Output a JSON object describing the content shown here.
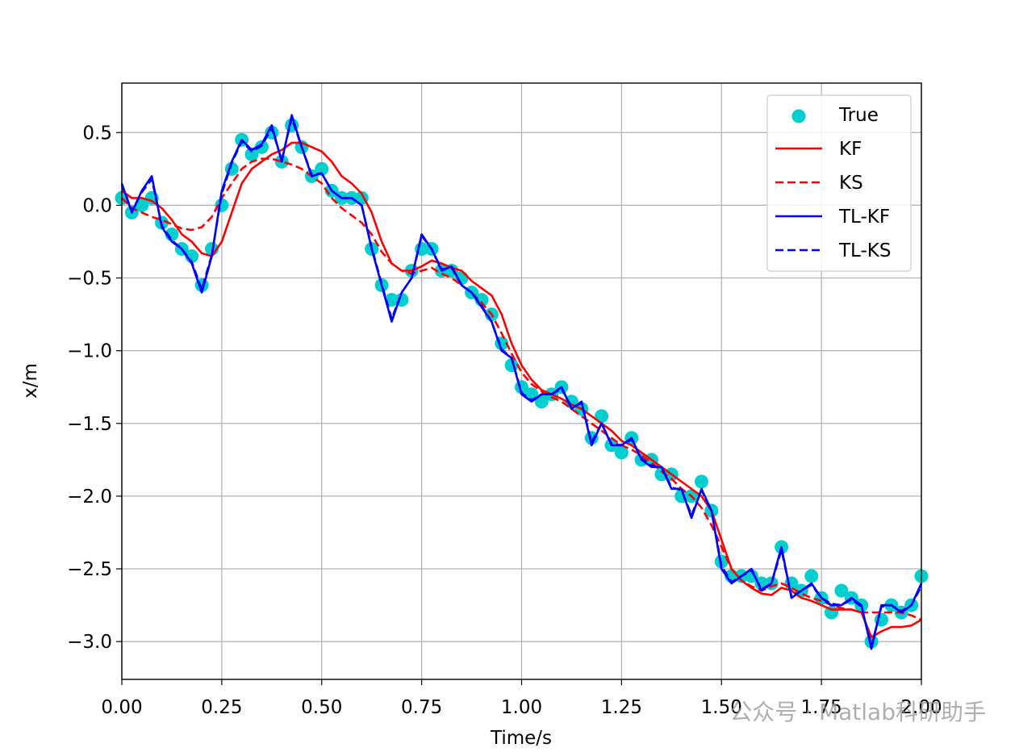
{
  "chart_data": {
    "type": "line",
    "xlabel": "Time/s",
    "ylabel": "x/m",
    "watermark": "公众号 · Matlab科研助手",
    "xlim": [
      0,
      2
    ],
    "ylim": [
      -3.26,
      0.84
    ],
    "grid": true,
    "legend": "upper right",
    "xticks": [
      {
        "value": 0,
        "label": "0.00"
      },
      {
        "value": 0.25,
        "label": "0.25"
      },
      {
        "value": 0.5,
        "label": "0.50"
      },
      {
        "value": 0.75,
        "label": "0.75"
      },
      {
        "value": 1,
        "label": "1.00"
      },
      {
        "value": 1.25,
        "label": "1.25"
      },
      {
        "value": 1.5,
        "label": "1.50"
      },
      {
        "value": 1.75,
        "label": "1.75"
      },
      {
        "value": 2,
        "label": "2.00"
      }
    ],
    "yticks": [
      {
        "value": -3,
        "label": "−3.0"
      },
      {
        "value": -2.5,
        "label": "−2.5"
      },
      {
        "value": -2,
        "label": "−2.0"
      },
      {
        "value": -1.5,
        "label": "−1.5"
      },
      {
        "value": -1,
        "label": "−1.0"
      },
      {
        "value": -0.5,
        "label": "−0.5"
      },
      {
        "value": 0,
        "label": "0.0"
      },
      {
        "value": 0.5,
        "label": "0.5"
      }
    ],
    "x": [
      0,
      0.025,
      0.05,
      0.075,
      0.1,
      0.125,
      0.15,
      0.175,
      0.2,
      0.225,
      0.25,
      0.275,
      0.3,
      0.325,
      0.35,
      0.375,
      0.4,
      0.425,
      0.45,
      0.475,
      0.5,
      0.525,
      0.55,
      0.575,
      0.6,
      0.625,
      0.65,
      0.675,
      0.7,
      0.725,
      0.75,
      0.775,
      0.8,
      0.825,
      0.85,
      0.875,
      0.9,
      0.925,
      0.95,
      0.975,
      1,
      1.025,
      1.05,
      1.075,
      1.1,
      1.125,
      1.15,
      1.175,
      1.2,
      1.225,
      1.25,
      1.275,
      1.3,
      1.325,
      1.35,
      1.375,
      1.4,
      1.425,
      1.45,
      1.475,
      1.5,
      1.525,
      1.55,
      1.575,
      1.6,
      1.625,
      1.65,
      1.675,
      1.7,
      1.725,
      1.75,
      1.775,
      1.8,
      1.825,
      1.85,
      1.875,
      1.9,
      1.925,
      1.95,
      1.975,
      2
    ],
    "series": [
      {
        "name": "True",
        "color": "#00cfcf",
        "style": "scatter",
        "values": [
          0.05,
          -0.05,
          0,
          0.05,
          -0.12,
          -0.2,
          -0.3,
          -0.35,
          -0.55,
          -0.3,
          0,
          0.25,
          0.45,
          0.35,
          0.4,
          0.5,
          0.3,
          0.55,
          0.4,
          0.2,
          0.25,
          0.1,
          0.05,
          0.05,
          0.05,
          -0.3,
          -0.55,
          -0.65,
          -0.65,
          -0.45,
          -0.3,
          -0.3,
          -0.45,
          -0.45,
          -0.5,
          -0.6,
          -0.65,
          -0.75,
          -0.95,
          -1.1,
          -1.25,
          -1.3,
          -1.35,
          -1.3,
          -1.25,
          -1.35,
          -1.4,
          -1.6,
          -1.45,
          -1.65,
          -1.7,
          -1.6,
          -1.75,
          -1.75,
          -1.85,
          -1.85,
          -2,
          -2,
          -1.9,
          -2.1,
          -2.45,
          -2.55,
          -2.55,
          -2.55,
          -2.6,
          -2.6,
          -2.35,
          -2.6,
          -2.65,
          -2.55,
          -2.7,
          -2.8,
          -2.65,
          -2.7,
          -2.75,
          -3,
          -2.85,
          -2.75,
          -2.8,
          -2.75,
          -2.55
        ]
      },
      {
        "name": "KF",
        "color": "#ff0000",
        "style": "solid",
        "values": [
          0.1,
          0.05,
          0.05,
          0.03,
          -0.02,
          -0.1,
          -0.2,
          -0.25,
          -0.33,
          -0.35,
          -0.25,
          -0.05,
          0.15,
          0.25,
          0.3,
          0.35,
          0.38,
          0.43,
          0.43,
          0.4,
          0.37,
          0.3,
          0.2,
          0.15,
          0.08,
          -0.05,
          -0.25,
          -0.4,
          -0.45,
          -0.45,
          -0.42,
          -0.38,
          -0.4,
          -0.43,
          -0.45,
          -0.52,
          -0.57,
          -0.62,
          -0.75,
          -0.95,
          -1.1,
          -1.2,
          -1.27,
          -1.3,
          -1.33,
          -1.37,
          -1.4,
          -1.45,
          -1.5,
          -1.55,
          -1.62,
          -1.65,
          -1.7,
          -1.75,
          -1.8,
          -1.85,
          -1.9,
          -1.95,
          -2,
          -2.1,
          -2.3,
          -2.5,
          -2.58,
          -2.63,
          -2.67,
          -2.68,
          -2.63,
          -2.65,
          -2.7,
          -2.72,
          -2.75,
          -2.78,
          -2.78,
          -2.78,
          -2.8,
          -2.97,
          -2.93,
          -2.9,
          -2.9,
          -2.89,
          -2.85
        ]
      },
      {
        "name": "KS",
        "color": "#ff0000",
        "style": "dashed",
        "values": [
          0.05,
          -0.02,
          -0.05,
          -0.08,
          -0.1,
          -0.13,
          -0.16,
          -0.17,
          -0.15,
          -0.08,
          0.05,
          0.15,
          0.25,
          0.3,
          0.32,
          0.32,
          0.3,
          0.28,
          0.25,
          0.2,
          0.15,
          0.05,
          -0.02,
          -0.07,
          -0.12,
          -0.2,
          -0.32,
          -0.4,
          -0.45,
          -0.47,
          -0.45,
          -0.43,
          -0.47,
          -0.5,
          -0.55,
          -0.6,
          -0.67,
          -0.75,
          -0.88,
          -1.02,
          -1.15,
          -1.23,
          -1.28,
          -1.32,
          -1.35,
          -1.4,
          -1.45,
          -1.5,
          -1.55,
          -1.6,
          -1.65,
          -1.68,
          -1.72,
          -1.77,
          -1.83,
          -1.88,
          -1.95,
          -2,
          -2.08,
          -2.2,
          -2.35,
          -2.5,
          -2.58,
          -2.62,
          -2.65,
          -2.62,
          -2.6,
          -2.63,
          -2.67,
          -2.7,
          -2.72,
          -2.75,
          -2.77,
          -2.78,
          -2.8,
          -2.8,
          -2.8,
          -2.8,
          -2.8,
          -2.82,
          -2.85
        ]
      },
      {
        "name": "TL-KF",
        "color": "#0000ff",
        "style": "solid",
        "values": [
          0.15,
          -0.05,
          0.1,
          0.2,
          -0.15,
          -0.25,
          -0.3,
          -0.4,
          -0.6,
          -0.35,
          0.1,
          0.3,
          0.45,
          0.38,
          0.42,
          0.55,
          0.3,
          0.62,
          0.4,
          0.2,
          0.22,
          0.1,
          0.05,
          0.05,
          0,
          -0.3,
          -0.55,
          -0.8,
          -0.6,
          -0.5,
          -0.2,
          -0.3,
          -0.45,
          -0.42,
          -0.55,
          -0.6,
          -0.7,
          -0.8,
          -1,
          -1.05,
          -1.3,
          -1.35,
          -1.3,
          -1.3,
          -1.25,
          -1.4,
          -1.35,
          -1.65,
          -1.5,
          -1.65,
          -1.65,
          -1.6,
          -1.75,
          -1.8,
          -1.8,
          -1.95,
          -1.95,
          -2.15,
          -1.95,
          -2.1,
          -2.5,
          -2.6,
          -2.55,
          -2.5,
          -2.65,
          -2.6,
          -2.35,
          -2.7,
          -2.65,
          -2.6,
          -2.7,
          -2.75,
          -2.75,
          -2.7,
          -2.75,
          -3.05,
          -2.75,
          -2.75,
          -2.8,
          -2.75,
          -2.6
        ]
      },
      {
        "name": "TL-KS",
        "color": "#0000ff",
        "style": "dashed",
        "values": [
          0.14,
          -0.04,
          0.09,
          0.18,
          -0.14,
          -0.24,
          -0.3,
          -0.39,
          -0.58,
          -0.34,
          0.08,
          0.29,
          0.44,
          0.37,
          0.41,
          0.53,
          0.31,
          0.6,
          0.4,
          0.21,
          0.22,
          0.1,
          0.05,
          0.05,
          0,
          -0.29,
          -0.54,
          -0.78,
          -0.6,
          -0.5,
          -0.21,
          -0.3,
          -0.44,
          -0.43,
          -0.55,
          -0.6,
          -0.69,
          -0.8,
          -0.99,
          -1.05,
          -1.29,
          -1.34,
          -1.3,
          -1.3,
          -1.26,
          -1.39,
          -1.36,
          -1.63,
          -1.5,
          -1.64,
          -1.65,
          -1.61,
          -1.74,
          -1.79,
          -1.8,
          -1.94,
          -1.96,
          -2.13,
          -1.96,
          -2.1,
          -2.48,
          -2.59,
          -2.55,
          -2.51,
          -2.64,
          -2.6,
          -2.37,
          -2.69,
          -2.65,
          -2.61,
          -2.7,
          -2.74,
          -2.75,
          -2.71,
          -2.76,
          -3.03,
          -2.76,
          -2.75,
          -2.79,
          -2.75,
          -2.62
        ]
      }
    ]
  }
}
